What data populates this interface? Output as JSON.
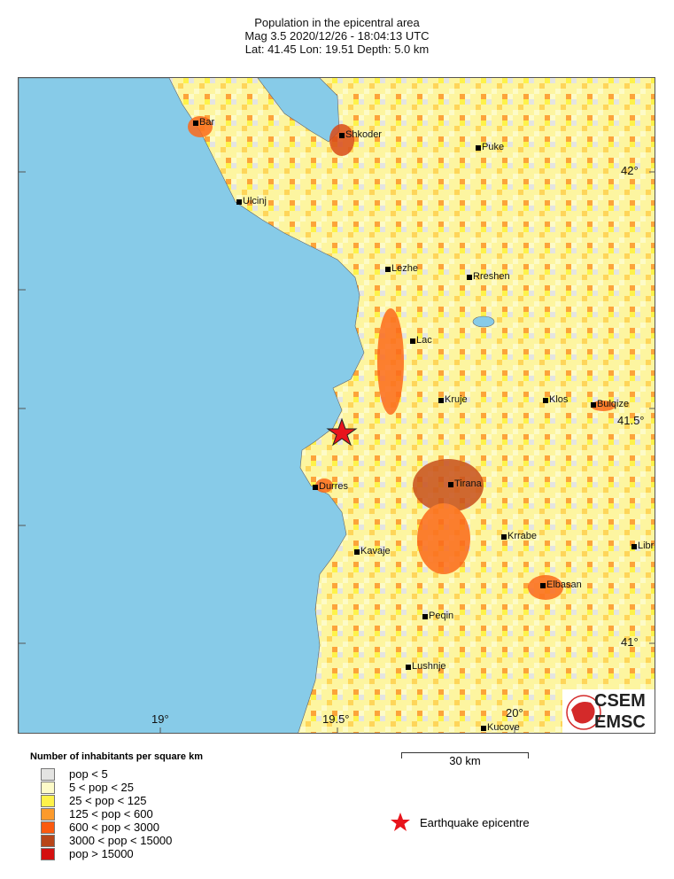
{
  "header": {
    "title": "Population in the epicentral area",
    "line2": "Mag 3.5  2020/12/26 - 18:04:13 UTC",
    "line3": "Lat: 41.45    Lon:  19.51     Depth:  5.0 km"
  },
  "map": {
    "colors": {
      "sea": "#87cbe8",
      "land_low": "#fdfbc8",
      "epicentre": "#e8141c"
    },
    "cities": [
      "Bar",
      "Shkoder",
      "Puke",
      "Ulcinj",
      "Lezhe",
      "Rreshen",
      "Lac",
      "Kruje",
      "Klos",
      "Bulqize",
      "Durres",
      "Tirana",
      "Krrabe",
      "Kavaje",
      "Elbasan",
      "Libra",
      "Peqin",
      "Lushnje",
      "Kucove"
    ],
    "lat_labels": [
      "42°",
      "41.5°",
      "41°"
    ],
    "lon_labels": [
      "19°",
      "19.5°",
      "20°"
    ],
    "logo": {
      "top": "CSEM",
      "bottom": "EMSC"
    }
  },
  "scale_bar": {
    "label": "30 km"
  },
  "legend": {
    "title": "Number of inhabitants per square km",
    "items": [
      {
        "label": "pop < 5",
        "color": "#e4e4e2"
      },
      {
        "label": "5 < pop < 25",
        "color": "#fdfbc8"
      },
      {
        "label": "25 < pop < 125",
        "color": "#fef24a"
      },
      {
        "label": "125 < pop < 600",
        "color": "#fc9a2c"
      },
      {
        "label": "600 < pop < 3000",
        "color": "#fb5a10"
      },
      {
        "label": "3000 < pop < 15000",
        "color": "#b8461a"
      },
      {
        "label": "pop > 15000",
        "color": "#d41010"
      }
    ],
    "epicentre_label": "Earthquake epicentre"
  }
}
